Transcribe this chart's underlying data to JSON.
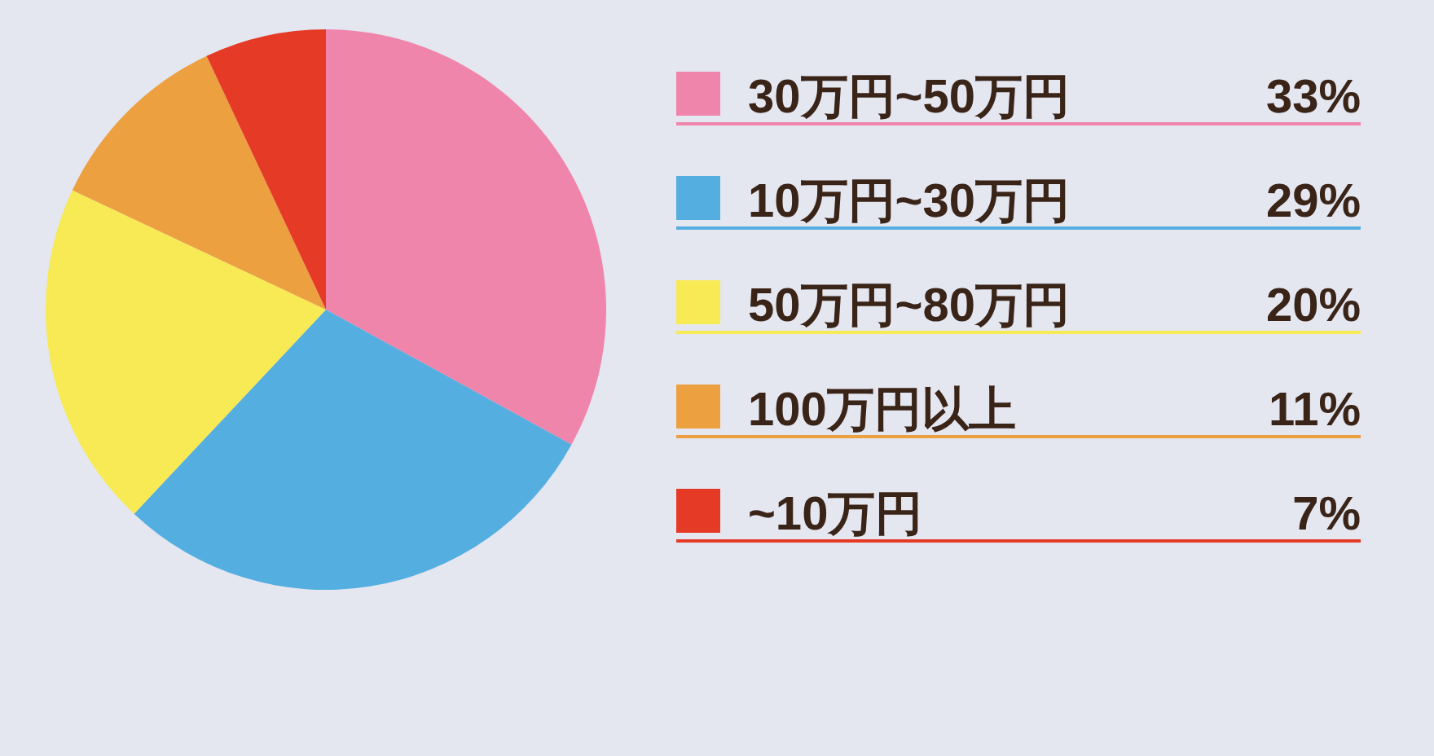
{
  "chart_data": {
    "type": "pie",
    "categories": [
      "30万円~50万円",
      "10万円~30万円",
      "50万円~80万円",
      "100万円以上",
      "~10万円"
    ],
    "values": [
      33,
      29,
      20,
      11,
      7
    ],
    "value_labels": [
      "33%",
      "29%",
      "20%",
      "11%",
      "7%"
    ],
    "colors": [
      "#ef85ab",
      "#55aee0",
      "#f7ea55",
      "#eda040",
      "#e53a26"
    ],
    "legend": "right"
  }
}
